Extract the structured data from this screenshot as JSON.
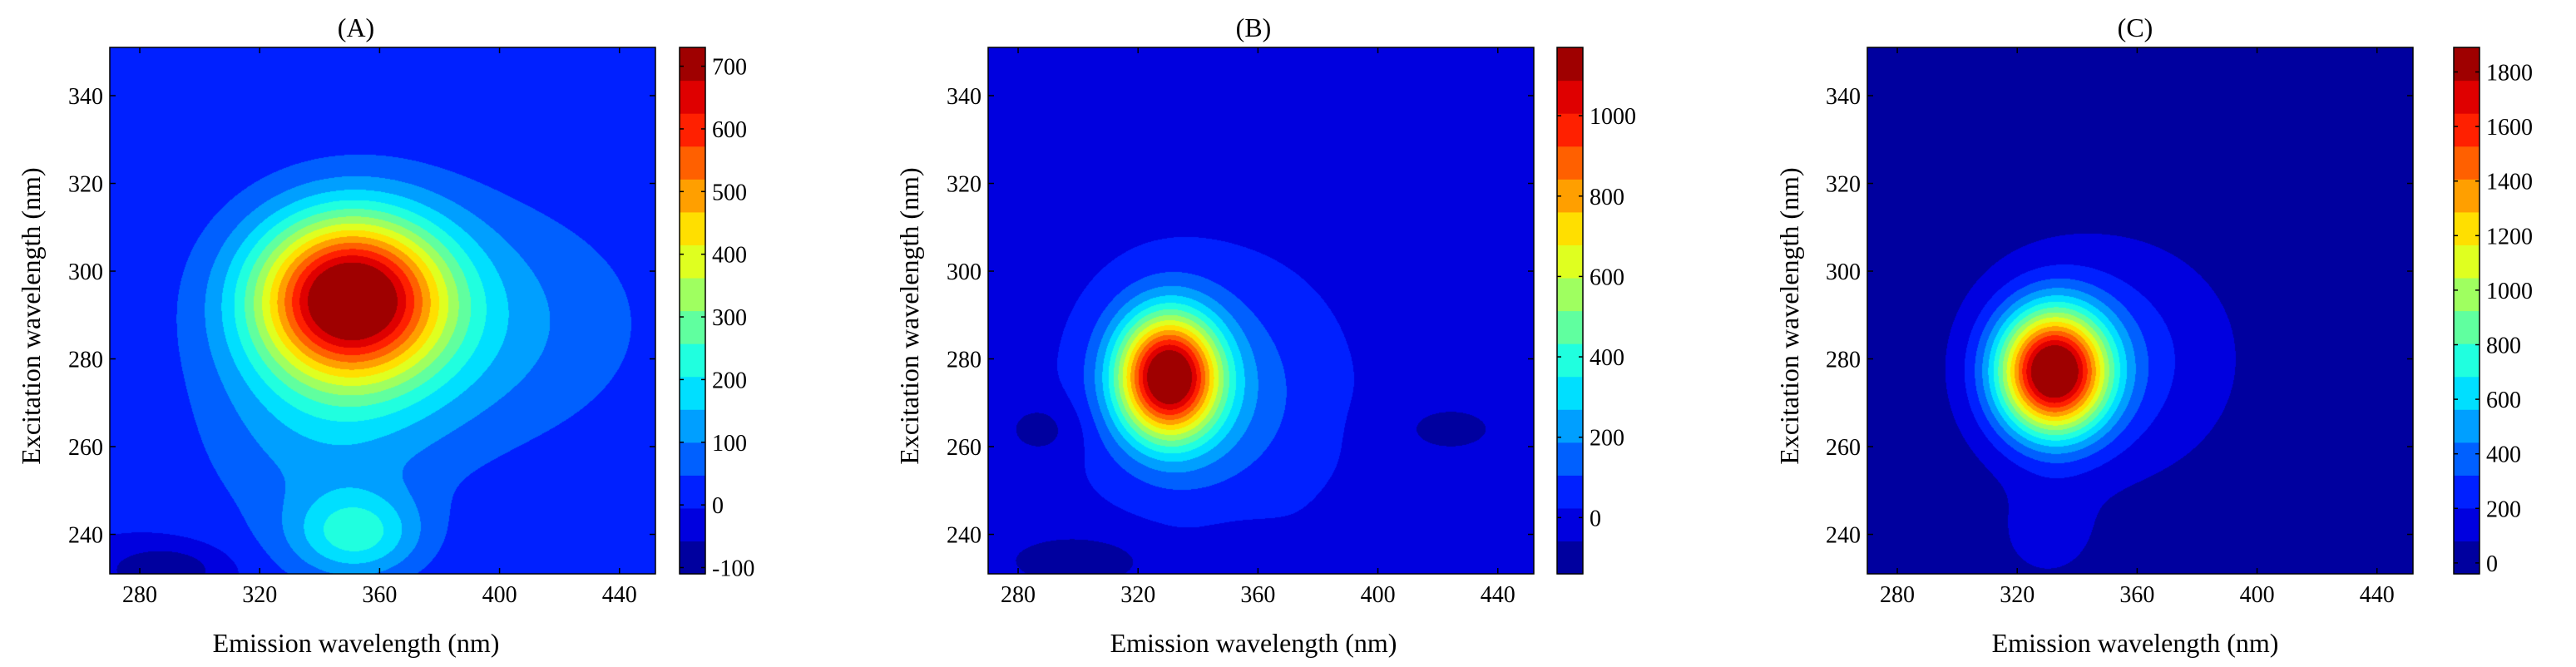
{
  "chart_data": [
    {
      "type": "heatmap",
      "title": "(A)",
      "xlabel": "Emission wavelength (nm)",
      "ylabel": "Excitation wavelength (nm)",
      "xlim": [
        270,
        452
      ],
      "ylim": [
        231,
        351
      ],
      "xticks": [
        280,
        320,
        360,
        400,
        440
      ],
      "yticks": [
        240,
        260,
        280,
        300,
        320,
        340
      ],
      "colorbar": {
        "min": -110,
        "max": 730,
        "ticks": [
          -100,
          0,
          100,
          200,
          300,
          400,
          500,
          600,
          700
        ]
      },
      "background": 0,
      "levels": 16,
      "peaks": [
        {
          "x": 350,
          "y": 294,
          "amp": 710,
          "sx": 22,
          "sy": 13
        },
        {
          "x": 380,
          "y": 288,
          "amp": 130,
          "sx": 45,
          "sy": 20
        },
        {
          "x": 352,
          "y": 240,
          "amp": 200,
          "sx": 15,
          "sy": 7
        },
        {
          "x": 340,
          "y": 262,
          "amp": 90,
          "sx": 28,
          "sy": 18
        },
        {
          "x": 288,
          "y": 232,
          "amp": -110,
          "sx": 14,
          "sy": 4
        }
      ]
    },
    {
      "type": "heatmap",
      "title": "(B)",
      "xlabel": "Emission wavelength (nm)",
      "ylabel": "Excitation wavelength (nm)",
      "xlim": [
        270,
        452
      ],
      "ylim": [
        231,
        351
      ],
      "xticks": [
        280,
        320,
        360,
        400,
        440
      ],
      "yticks": [
        240,
        260,
        280,
        300,
        320,
        340
      ],
      "colorbar": {
        "min": -140,
        "max": 1170,
        "ticks": [
          0,
          200,
          400,
          600,
          800,
          1000
        ]
      },
      "background": 0,
      "levels": 16,
      "peaks": [
        {
          "x": 330,
          "y": 276,
          "amp": 1160,
          "sx": 12,
          "sy": 10
        },
        {
          "x": 345,
          "y": 272,
          "amp": 170,
          "sx": 24,
          "sy": 17
        },
        {
          "x": 288,
          "y": 264,
          "amp": -90,
          "sx": 10,
          "sy": 5
        },
        {
          "x": 424,
          "y": 264,
          "amp": -80,
          "sx": 15,
          "sy": 5
        },
        {
          "x": 300,
          "y": 234,
          "amp": -100,
          "sx": 20,
          "sy": 5
        },
        {
          "x": 355,
          "y": 236,
          "amp": -70,
          "sx": 10,
          "sy": 4
        }
      ]
    },
    {
      "type": "heatmap",
      "title": "(C)",
      "xlabel": "Emission wavelength (nm)",
      "ylabel": "Excitation wavelength (nm)",
      "xlim": [
        270,
        452
      ],
      "ylim": [
        231,
        351
      ],
      "xticks": [
        280,
        320,
        360,
        400,
        440
      ],
      "yticks": [
        240,
        260,
        280,
        300,
        320,
        340
      ],
      "colorbar": {
        "min": -40,
        "max": 1890,
        "ticks": [
          0,
          200,
          400,
          600,
          800,
          1000,
          1200,
          1400,
          1600,
          1800
        ]
      },
      "background": 0,
      "levels": 16,
      "peaks": [
        {
          "x": 332,
          "y": 277,
          "amp": 1880,
          "sx": 13,
          "sy": 10
        },
        {
          "x": 350,
          "y": 280,
          "amp": 260,
          "sx": 28,
          "sy": 18
        },
        {
          "x": 330,
          "y": 240,
          "amp": 120,
          "sx": 12,
          "sy": 8
        }
      ]
    }
  ]
}
